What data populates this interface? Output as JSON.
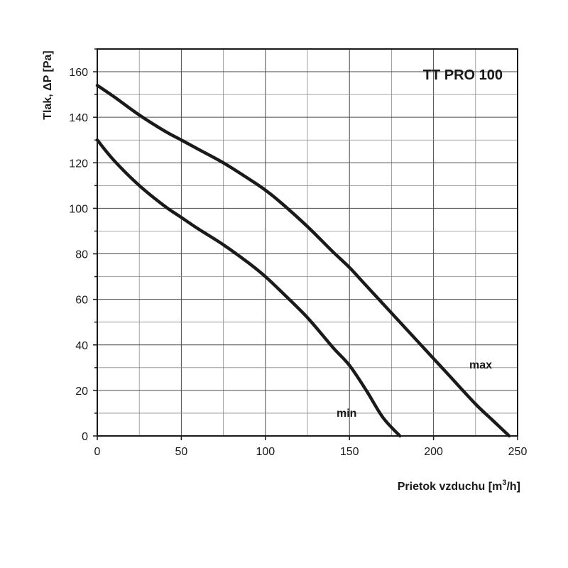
{
  "chart_data": {
    "type": "line",
    "title": "TT PRO 100",
    "xlabel": "Prietok vzduchu  [m",
    "xlabel_superscript": "3",
    "xlabel_suffix": "/h]",
    "ylabel": "Tlak, ΔP [Pa]",
    "xlim": [
      0,
      250
    ],
    "ylim": [
      0,
      170
    ],
    "x_ticks": [
      0,
      50,
      100,
      150,
      200,
      250
    ],
    "y_ticks": [
      0,
      20,
      40,
      60,
      80,
      100,
      120,
      140,
      160
    ],
    "x_minor_grid": [
      25,
      75,
      125,
      175,
      225
    ],
    "y_minor_grid": [
      10,
      30,
      50,
      70,
      90,
      110,
      130,
      150,
      170
    ],
    "grid": true,
    "series": [
      {
        "name": "max",
        "x": [
          0,
          10,
          25,
          40,
          50,
          60,
          75,
          90,
          100,
          110,
          125,
          140,
          150,
          160,
          175,
          190,
          200,
          210,
          225,
          235,
          245
        ],
        "y": [
          154,
          149,
          141,
          134,
          130,
          126,
          120,
          113,
          108,
          102,
          92,
          81,
          74,
          66,
          54,
          42,
          34,
          26,
          14,
          7,
          0
        ]
      },
      {
        "name": "min",
        "x": [
          0,
          10,
          25,
          40,
          50,
          60,
          75,
          90,
          100,
          110,
          125,
          140,
          150,
          160,
          170,
          180
        ],
        "y": [
          130,
          121,
          110,
          101,
          96,
          91,
          84,
          76,
          70,
          63,
          52,
          39,
          31,
          20,
          8,
          0
        ]
      }
    ],
    "colors": {
      "line": "#1a1a1a",
      "grid": "#4a4a4a",
      "background": "#ffffff"
    }
  }
}
